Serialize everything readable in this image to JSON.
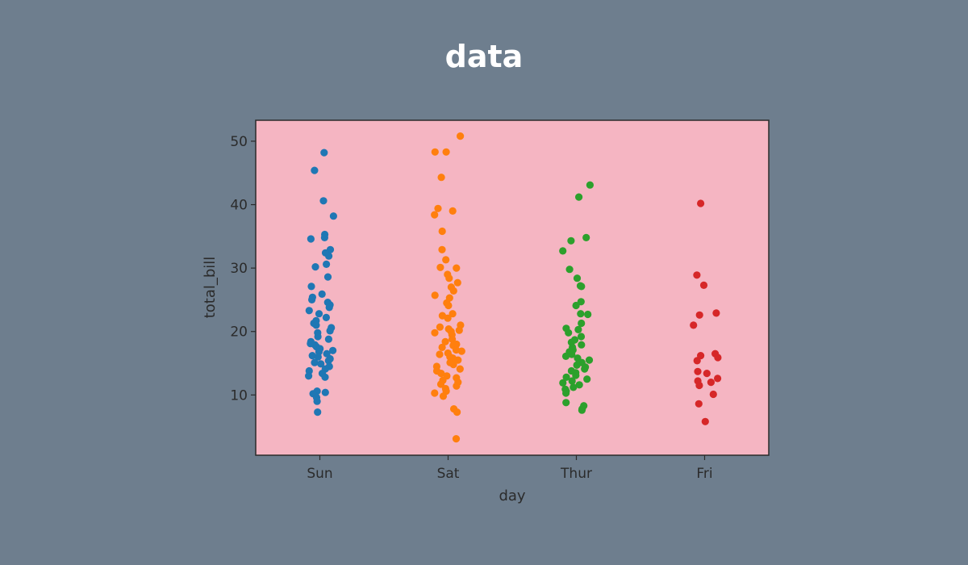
{
  "page": {
    "title": "data"
  },
  "chart_data": {
    "type": "scatter",
    "title": "",
    "xlabel": "day",
    "ylabel": "total_bill",
    "categories": [
      "Sun",
      "Sat",
      "Thur",
      "Fri"
    ],
    "ylim": [
      0.5,
      53.3
    ],
    "yticks": [
      10,
      20,
      30,
      40,
      50
    ],
    "grid": false,
    "legend": "none",
    "background": "#f5b5c2",
    "colors": [
      "#1f77b4",
      "#ff7f0e",
      "#2ca02c",
      "#d62728"
    ],
    "series": [
      {
        "values": [
          48.2,
          45.4,
          40.6,
          38.2,
          35.3,
          34.8,
          34.6,
          32.9,
          32.4,
          31.9,
          30.6,
          30.2,
          28.6,
          27.1,
          25.9,
          25.4,
          25.0,
          24.6,
          24.2,
          23.8,
          23.3,
          22.8,
          22.2,
          21.7,
          21.3,
          21.0,
          20.6,
          20.1,
          19.8,
          19.2,
          18.8,
          18.4,
          18.1,
          17.9,
          17.6,
          17.3,
          17.0,
          16.8,
          16.5,
          16.2,
          16.0,
          15.7,
          15.4,
          15.1,
          14.9,
          14.5,
          14.1,
          13.8,
          13.4,
          13.0,
          12.8,
          10.6,
          10.4,
          10.2,
          9.6,
          9.0,
          7.3
        ]
      },
      {
        "values": [
          50.8,
          48.3,
          48.3,
          44.3,
          39.4,
          39.0,
          38.4,
          35.8,
          32.9,
          31.3,
          30.1,
          30.0,
          29.0,
          28.4,
          27.7,
          27.0,
          26.4,
          25.7,
          25.3,
          24.5,
          24.1,
          22.8,
          22.5,
          22.1,
          21.0,
          20.7,
          20.4,
          20.2,
          20.0,
          19.8,
          19.5,
          18.8,
          18.4,
          18.0,
          17.8,
          17.5,
          17.1,
          16.9,
          16.6,
          16.4,
          16.0,
          15.8,
          15.5,
          15.1,
          14.8,
          14.5,
          14.1,
          13.8,
          13.4,
          13.0,
          12.7,
          12.3,
          12.0,
          11.7,
          11.4,
          11.0,
          10.6,
          10.3,
          9.8,
          7.8,
          7.3,
          3.1
        ]
      },
      {
        "values": [
          43.1,
          41.2,
          34.8,
          34.3,
          32.7,
          29.8,
          28.4,
          27.2,
          27.1,
          24.7,
          24.1,
          22.8,
          22.7,
          21.3,
          20.5,
          20.3,
          19.8,
          19.2,
          18.7,
          18.3,
          17.9,
          17.5,
          17.1,
          16.8,
          16.4,
          16.1,
          15.8,
          15.5,
          15.1,
          14.7,
          14.4,
          14.1,
          13.8,
          13.5,
          13.1,
          12.8,
          12.5,
          12.2,
          11.9,
          11.6,
          11.2,
          10.9,
          10.6,
          10.3,
          8.8,
          8.3,
          7.8,
          7.6
        ]
      },
      {
        "values": [
          40.2,
          28.9,
          27.3,
          22.9,
          22.6,
          21.0,
          16.5,
          16.2,
          15.9,
          15.4,
          13.7,
          13.4,
          12.6,
          12.2,
          12.0,
          11.5,
          10.1,
          8.6,
          5.8
        ]
      }
    ]
  }
}
